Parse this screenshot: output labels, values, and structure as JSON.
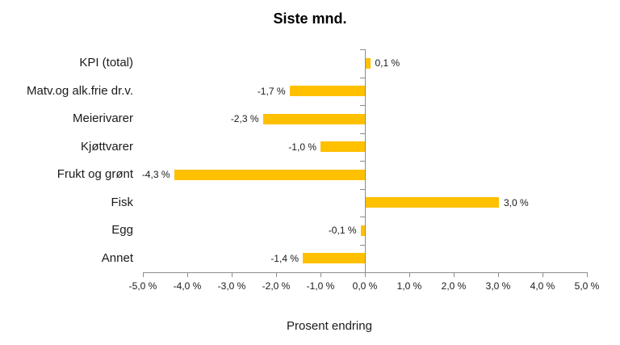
{
  "chart_data": {
    "type": "bar",
    "orientation": "horizontal",
    "title": "Siste mnd.",
    "xlabel": "Prosent endring",
    "categories": [
      "KPI (total)",
      "Matv.og alk.frie dr.v.",
      "Meierivarer",
      "Kjøttvarer",
      "Frukt og grønt",
      "Fisk",
      "Egg",
      "Annet"
    ],
    "values": [
      0.1,
      -1.7,
      -2.3,
      -1.0,
      -4.3,
      3.0,
      -0.1,
      -1.4
    ],
    "value_labels": [
      "0,1 %",
      "-1,7 %",
      "-2,3 %",
      "-1,0 %",
      "-4,3 %",
      "3,0 %",
      "-0,1 %",
      "-1,4 %"
    ],
    "xlim": [
      -5,
      5
    ],
    "xticks": [
      -5,
      -4,
      -3,
      -2,
      -1,
      0,
      1,
      2,
      3,
      4,
      5
    ],
    "xtick_labels": [
      "-5,0 %",
      "-4,0 %",
      "-3,0 %",
      "-2,0 %",
      "-1,0 %",
      "0,0 %",
      "1,0 %",
      "2,0 %",
      "3,0 %",
      "4,0 %",
      "5,0 %"
    ],
    "grid": false,
    "legend": "none",
    "colors": {
      "bar": "#FFC000",
      "axis": "#8C8C8C",
      "text": "#1A1A1A",
      "background": "#FFFFFF"
    }
  }
}
